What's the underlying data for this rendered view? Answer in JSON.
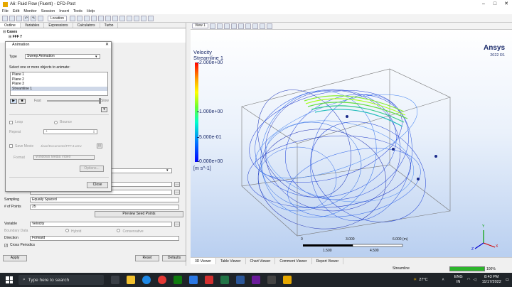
{
  "window": {
    "title": "A6: Fluid Flow (Fluent) - CFD-Post"
  },
  "menu": [
    "File",
    "Edit",
    "Monitor",
    "Session",
    "Insert",
    "Tools",
    "Help"
  ],
  "toolbar": {
    "location_label": "Location"
  },
  "outline_tabs": [
    "Outline",
    "Variables",
    "Expressions",
    "Calculators",
    "Turbo"
  ],
  "tree": {
    "root": "Cases",
    "child": "FFF 7"
  },
  "animation_dialog": {
    "title": "Animation",
    "type_label": "Type",
    "type_value": "Sweep Animation",
    "objects_prompt": "Select one or more objects to animate:",
    "objects": [
      "Plane 1",
      "Plane 2",
      "Plane 3",
      "Streamline 1"
    ],
    "selected_object": "Streamline 1",
    "fast_label": "Fast",
    "slow_label": "Slow",
    "loop_label": "Loop",
    "bounce_label": "Bounce",
    "repeat_label": "Repeat",
    "repeat_value": "1",
    "save_movie_label": "Save Movie",
    "movie_path": "Jiaxe/Documents/FFF.3.wmv",
    "format_label": "Format",
    "format_value": "Windows Media Video",
    "options_label": "Options...",
    "close_label": "Close"
  },
  "details": {
    "sampling_label": "Sampling",
    "sampling_value": "Equally Spaced",
    "points_label": "# of Points",
    "points_value": "25",
    "preview_seed_label": "Preview Seed Points",
    "variable_label": "Variable",
    "variable_value": "Velocity",
    "boundary_label": "Boundary Data",
    "hybrid_label": "Hybrid",
    "conservative_label": "Conservative",
    "direction_label": "Direction",
    "direction_value": "Forward",
    "cross_periodics_label": "Cross Periodics",
    "apply_label": "Apply",
    "reset_label": "Reset",
    "defaults_label": "Defaults"
  },
  "viewer": {
    "view_label": "View 1",
    "legend_title_1": "Velocity",
    "legend_title_2": "Streamline 1",
    "legend_ticks": [
      "2.000e+00",
      "1.000e+00",
      "5.000e-01",
      "0.000e+00"
    ],
    "legend_unit": "[m s^-1]",
    "brand": "Ansys",
    "brand_sub": "2022 R1",
    "scale_ticks_top": [
      "0",
      "3.000",
      "6.000  (m)"
    ],
    "scale_ticks_bottom": [
      "1.500",
      "4.500"
    ],
    "axis_labels": [
      "Y",
      "X",
      "Z"
    ],
    "tabs": [
      "3D Viewer",
      "Table Viewer",
      "Chart Viewer",
      "Comment Viewer",
      "Report Viewer"
    ],
    "active_tab": "3D Viewer"
  },
  "status": {
    "label": "Streamline",
    "progress_text": "100%",
    "progress": 1.0
  },
  "taskbar": {
    "search_placeholder": "Type here to search",
    "weather": "27°C",
    "lang": "ENG",
    "region": "IN",
    "time": "8:43 PM",
    "date": "11/17/2022"
  }
}
